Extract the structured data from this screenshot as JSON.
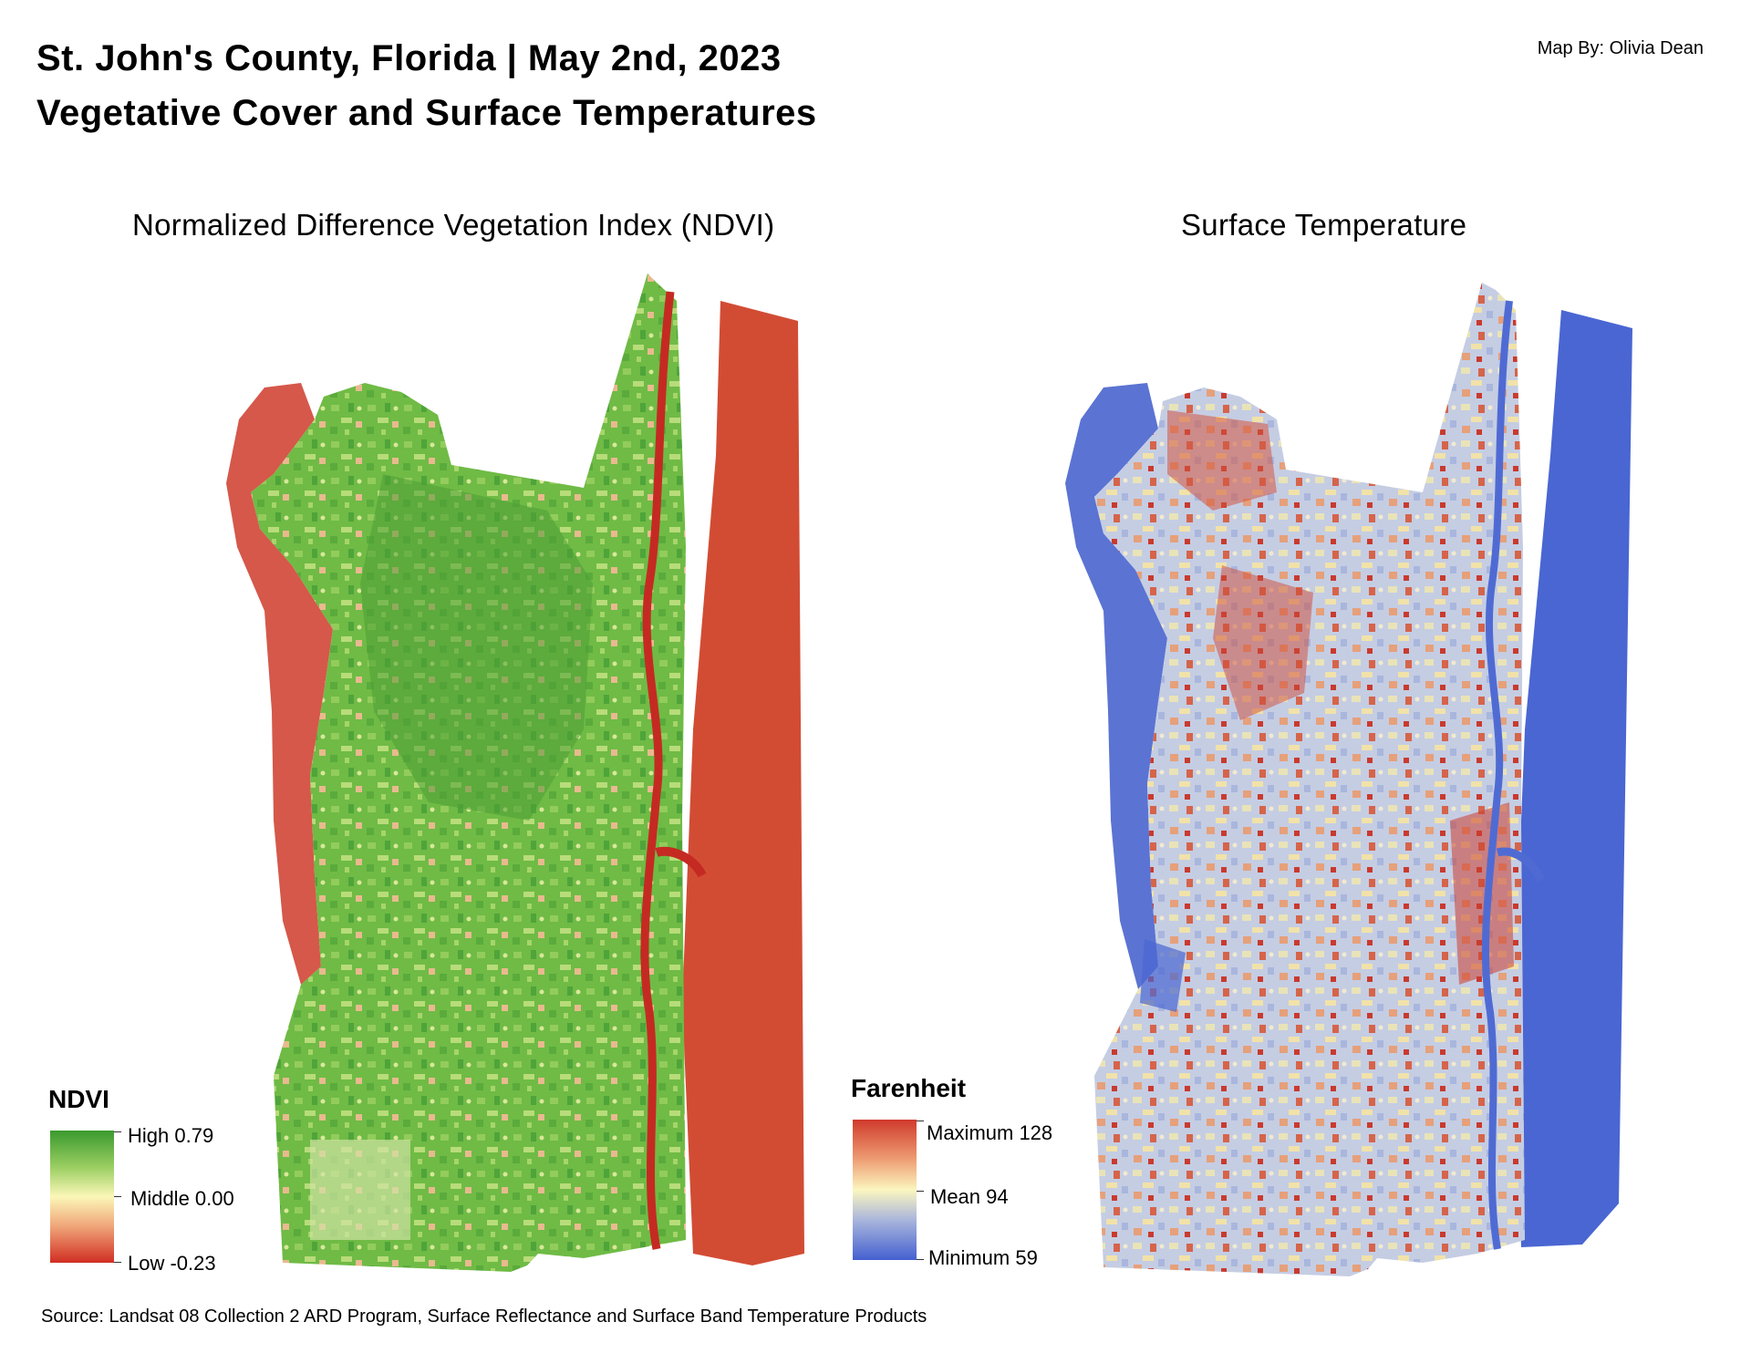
{
  "header": {
    "title_line1": "St. John's County, Florida | May 2nd, 2023",
    "title_line2": "Vegetative Cover and Surface Temperatures",
    "author": "Map By: Olivia Dean"
  },
  "panels": {
    "ndvi": {
      "title": "Normalized Difference Vegetation Index (NDVI)"
    },
    "temperature": {
      "title": "Surface Temperature"
    }
  },
  "legends": {
    "ndvi": {
      "title": "NDVI",
      "high": "High 0.79",
      "middle": "Middle 0.00",
      "low": "Low -0.23",
      "colors": {
        "high": "#3a9a2e",
        "middle": "#fbf7b8",
        "low": "#d12d22"
      }
    },
    "temperature": {
      "title": "Farenheit",
      "max": "Maximum 128",
      "mean": "Mean 94",
      "min": "Minimum 59",
      "colors": {
        "max": "#cf3a2c",
        "mean": "#fbf6bf",
        "min": "#4460d0"
      }
    }
  },
  "source": "Source: Landsat 08 Collection 2 ARD Program, Surface Reflectance and Surface Band Temperature Products"
}
